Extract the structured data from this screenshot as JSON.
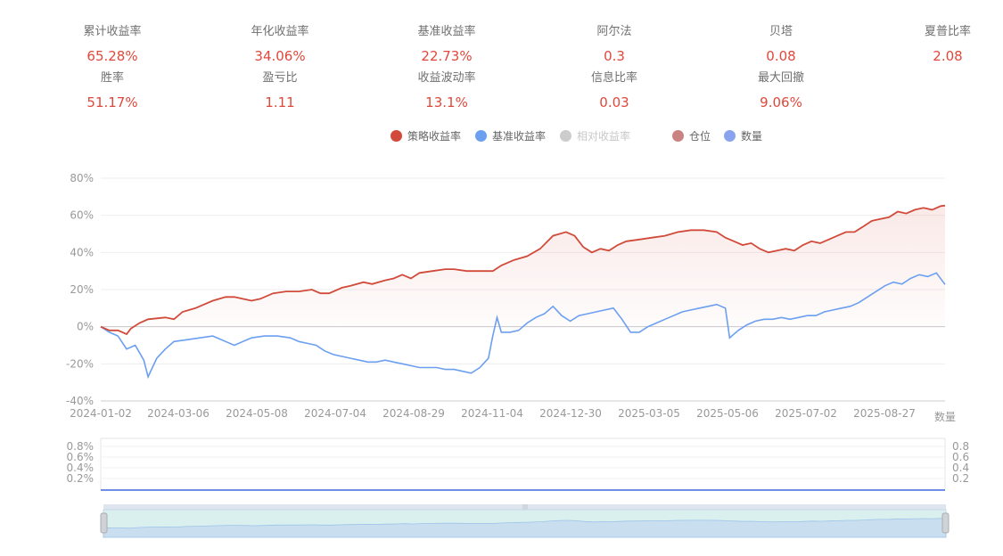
{
  "stats": [
    {
      "label": "累计收益率",
      "value": "65.28%"
    },
    {
      "label": "年化收益率",
      "value": "34.06%"
    },
    {
      "label": "基准收益率",
      "value": "22.73%"
    },
    {
      "label": "阿尔法",
      "value": "0.3"
    },
    {
      "label": "贝塔",
      "value": "0.08"
    },
    {
      "label": "夏普比率",
      "value": "2.08"
    },
    {
      "label": "胜率",
      "value": "51.17%"
    },
    {
      "label": "盈亏比",
      "value": "1.11"
    },
    {
      "label": "收益波动率",
      "value": "13.1%"
    },
    {
      "label": "信息比率",
      "value": "0.03"
    },
    {
      "label": "最大回撤",
      "value": "9.06%"
    }
  ],
  "legend": [
    {
      "name": "策略收益率",
      "color": "#d14a3a",
      "active": true
    },
    {
      "name": "基准收益率",
      "color": "#6b9ff0",
      "active": true
    },
    {
      "name": "相对收益率",
      "color": "#cccccc",
      "active": false
    },
    {
      "name": "仓位",
      "color": "#c98380",
      "active": true
    },
    {
      "name": "数量",
      "color": "#8aa3ee",
      "active": true
    }
  ],
  "chart_data": [
    {
      "type": "line",
      "x_ticks": [
        "2024-01-02",
        "2024-03-06",
        "2024-05-08",
        "2024-07-04",
        "2024-08-29",
        "2024-11-04",
        "2024-12-30",
        "2025-03-05",
        "2025-05-06",
        "2025-07-02",
        "2025-08-27"
      ],
      "y_ticks": [
        "80%",
        "60%",
        "40%",
        "20%",
        "0%",
        "-20%",
        "-40%"
      ],
      "ylim": [
        -40,
        80
      ],
      "grid": true,
      "unit_label": "数量",
      "series": [
        {
          "name": "策略收益率",
          "color": "#d14a3a",
          "points": [
            [
              0,
              0
            ],
            [
              2,
              -2
            ],
            [
              4,
              -2
            ],
            [
              6,
              -4
            ],
            [
              7,
              -1
            ],
            [
              9,
              2
            ],
            [
              11,
              4
            ],
            [
              15,
              5
            ],
            [
              17,
              4
            ],
            [
              19,
              8
            ],
            [
              22,
              10
            ],
            [
              26,
              14
            ],
            [
              29,
              16
            ],
            [
              31,
              16
            ],
            [
              33,
              15
            ],
            [
              35,
              14
            ],
            [
              37,
              15
            ],
            [
              40,
              18
            ],
            [
              43,
              19
            ],
            [
              46,
              19
            ],
            [
              49,
              20
            ],
            [
              51,
              18
            ],
            [
              53,
              18
            ],
            [
              56,
              21
            ],
            [
              58,
              22
            ],
            [
              61,
              24
            ],
            [
              63,
              23
            ],
            [
              66,
              25
            ],
            [
              68,
              26
            ],
            [
              70,
              28
            ],
            [
              72,
              26
            ],
            [
              74,
              29
            ],
            [
              77,
              30
            ],
            [
              80,
              31
            ],
            [
              82,
              31
            ],
            [
              85,
              30
            ],
            [
              88,
              30
            ],
            [
              91,
              30
            ],
            [
              93,
              33
            ],
            [
              96,
              36
            ],
            [
              99,
              38
            ],
            [
              102,
              42
            ],
            [
              105,
              49
            ],
            [
              108,
              51
            ],
            [
              110,
              49
            ],
            [
              112,
              43
            ],
            [
              114,
              40
            ],
            [
              116,
              42
            ],
            [
              118,
              41
            ],
            [
              120,
              44
            ],
            [
              122,
              46
            ],
            [
              125,
              47
            ],
            [
              128,
              48
            ],
            [
              131,
              49
            ],
            [
              134,
              51
            ],
            [
              137,
              52
            ],
            [
              140,
              52
            ],
            [
              143,
              51
            ],
            [
              145,
              48
            ],
            [
              147,
              46
            ],
            [
              149,
              44
            ],
            [
              151,
              45
            ],
            [
              153,
              42
            ],
            [
              155,
              40
            ],
            [
              157,
              41
            ],
            [
              159,
              42
            ],
            [
              161,
              41
            ],
            [
              163,
              44
            ],
            [
              165,
              46
            ],
            [
              167,
              45
            ],
            [
              169,
              47
            ],
            [
              171,
              49
            ],
            [
              173,
              51
            ],
            [
              175,
              51
            ],
            [
              177,
              54
            ],
            [
              179,
              57
            ],
            [
              181,
              58
            ],
            [
              183,
              59
            ],
            [
              185,
              62
            ],
            [
              187,
              61
            ],
            [
              189,
              63
            ],
            [
              191,
              64
            ],
            [
              193,
              63
            ],
            [
              195,
              65
            ],
            [
              196,
              65.28
            ]
          ]
        },
        {
          "name": "基准收益率",
          "color": "#6b9ff0",
          "points": [
            [
              0,
              0
            ],
            [
              2,
              -3
            ],
            [
              4,
              -5
            ],
            [
              6,
              -12
            ],
            [
              8,
              -10
            ],
            [
              10,
              -18
            ],
            [
              11,
              -27
            ],
            [
              13,
              -17
            ],
            [
              15,
              -12
            ],
            [
              17,
              -8
            ],
            [
              20,
              -7
            ],
            [
              23,
              -6
            ],
            [
              26,
              -5
            ],
            [
              29,
              -8
            ],
            [
              31,
              -10
            ],
            [
              33,
              -8
            ],
            [
              35,
              -6
            ],
            [
              38,
              -5
            ],
            [
              41,
              -5
            ],
            [
              44,
              -6
            ],
            [
              46,
              -8
            ],
            [
              48,
              -9
            ],
            [
              50,
              -10
            ],
            [
              52,
              -13
            ],
            [
              54,
              -15
            ],
            [
              56,
              -16
            ],
            [
              58,
              -17
            ],
            [
              60,
              -18
            ],
            [
              62,
              -19
            ],
            [
              64,
              -19
            ],
            [
              66,
              -18
            ],
            [
              68,
              -19
            ],
            [
              70,
              -20
            ],
            [
              72,
              -21
            ],
            [
              74,
              -22
            ],
            [
              76,
              -22
            ],
            [
              78,
              -22
            ],
            [
              80,
              -23
            ],
            [
              82,
              -23
            ],
            [
              84,
              -24
            ],
            [
              86,
              -25
            ],
            [
              88,
              -22
            ],
            [
              90,
              -17
            ],
            [
              91,
              -5
            ],
            [
              92,
              5
            ],
            [
              93,
              -3
            ],
            [
              95,
              -3
            ],
            [
              97,
              -2
            ],
            [
              99,
              2
            ],
            [
              101,
              5
            ],
            [
              103,
              7
            ],
            [
              105,
              11
            ],
            [
              107,
              6
            ],
            [
              109,
              3
            ],
            [
              111,
              6
            ],
            [
              113,
              7
            ],
            [
              115,
              8
            ],
            [
              117,
              9
            ],
            [
              119,
              10
            ],
            [
              121,
              4
            ],
            [
              123,
              -3
            ],
            [
              125,
              -3
            ],
            [
              127,
              0
            ],
            [
              129,
              2
            ],
            [
              131,
              4
            ],
            [
              133,
              6
            ],
            [
              135,
              8
            ],
            [
              137,
              9
            ],
            [
              139,
              10
            ],
            [
              141,
              11
            ],
            [
              143,
              12
            ],
            [
              145,
              10
            ],
            [
              146,
              -6
            ],
            [
              148,
              -2
            ],
            [
              150,
              1
            ],
            [
              152,
              3
            ],
            [
              154,
              4
            ],
            [
              156,
              4
            ],
            [
              158,
              5
            ],
            [
              160,
              4
            ],
            [
              162,
              5
            ],
            [
              164,
              6
            ],
            [
              166,
              6
            ],
            [
              168,
              8
            ],
            [
              170,
              9
            ],
            [
              172,
              10
            ],
            [
              174,
              11
            ],
            [
              176,
              13
            ],
            [
              178,
              16
            ],
            [
              180,
              19
            ],
            [
              182,
              22
            ],
            [
              184,
              24
            ],
            [
              186,
              23
            ],
            [
              188,
              26
            ],
            [
              190,
              28
            ],
            [
              192,
              27
            ],
            [
              194,
              29
            ],
            [
              196,
              22.73
            ]
          ]
        }
      ]
    },
    {
      "type": "line",
      "title": "",
      "y_ticks_left": [
        "0.8%",
        "0.6%",
        "0.4%",
        "0.2%"
      ],
      "y_ticks_right": [
        "0.8",
        "0.6",
        "0.4",
        "0.2"
      ],
      "ylim": [
        0,
        1
      ],
      "series": [
        {
          "name": "仓位",
          "color": "#c98380",
          "values": [
            0
          ]
        },
        {
          "name": "数量",
          "color": "#8aa3ee",
          "values": [
            0
          ]
        }
      ]
    }
  ],
  "zoom": {
    "start_percent": 0,
    "end_percent": 100
  }
}
